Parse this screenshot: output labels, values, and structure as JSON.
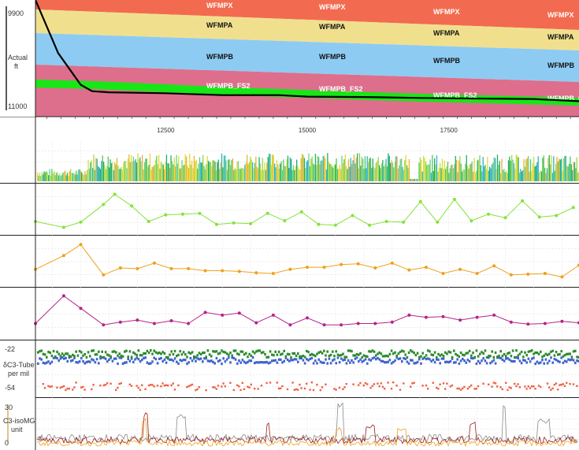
{
  "colors": {
    "WFMPX": "#f26b50",
    "WFMPA": "#f0e08e",
    "WFMPB": "#8ecbf3",
    "WFMPB_FS2": "#dd6f8c",
    "band": "#17e617",
    "trajectory": "#000000",
    "green_series": "#86e23a",
    "orange_series": "#f0a01c",
    "magenta_series": "#b5248a",
    "tube_upper_a": "#2e8b2e",
    "tube_upper_b": "#3f64cf",
    "tube_lower": "#f06146",
    "c3_red": "#9b1c1c",
    "c3_orange": "#f0a01c",
    "c3_grey": "#8a8a8a"
  },
  "axis": {
    "x_ticks": [
      "12500",
      "15000",
      "17500"
    ],
    "depth_top": "9900",
    "depth_bottom": "11000",
    "depth_label_1": "Actual",
    "depth_label_2": "ft"
  },
  "formation_labels": {
    "wfmpx": "WFMPX",
    "wfmpa": "WFMPA",
    "wfmpb": "WFMPB",
    "wfmpb_fs2": "WFMPB_FS2"
  },
  "tube_panel": {
    "top_value": "-22",
    "bottom_value": "-54",
    "label_1": "δC3-Tube",
    "label_2": "per mil"
  },
  "c3_panel": {
    "top_value": "30",
    "bottom_value": "0",
    "label_1": "C3-isoMG",
    "label_2": "unit"
  },
  "chart_data": [
    {
      "type": "area",
      "ylabel": "Actual ft",
      "xlim": [
        10200,
        19800
      ],
      "ylim": [
        9900,
        11000
      ],
      "x_ticks": [
        12500,
        15000,
        17500
      ],
      "formations": [
        "WFMPX",
        "WFMPA",
        "WFMPB",
        "WFMPB_FS2"
      ],
      "formation_tops_x": [
        10200,
        19800
      ],
      "trajectory": {
        "x": [
          10200,
          10600,
          11000,
          11200,
          11500,
          12500,
          13500,
          14500,
          15000,
          16000,
          17000,
          18000,
          19000,
          19800
        ],
        "y": [
          9900,
          10400,
          10700,
          10760,
          10770,
          10790,
          10800,
          10790,
          10800,
          10810,
          10830,
          10840,
          10840,
          10850
        ]
      }
    },
    {
      "type": "bar",
      "description": "dense colored log track"
    },
    {
      "type": "line",
      "series": [
        {
          "x": [
            10200,
            10700,
            11000,
            11400,
            11600,
            11900,
            12200,
            12500,
            12800,
            13100,
            13400,
            13700,
            14000,
            14300,
            14600,
            14900,
            15200,
            15500,
            15800,
            16100,
            16400,
            16700,
            17000,
            17300,
            17600,
            17900,
            18200,
            18500,
            18800,
            19100,
            19400,
            19700
          ],
          "y": [
            1.5,
            0.7,
            1.4,
            3.8,
            5.2,
            3.6,
            1.5,
            2.4,
            2.5,
            2.6,
            1.1,
            1.3,
            1.2,
            2.6,
            1.6,
            2.8,
            1.1,
            1.0,
            2.3,
            1.0,
            1.5,
            1.4,
            4.2,
            1.4,
            4.5,
            1.6,
            2.5,
            2.0,
            4.3,
            2.1,
            2.3,
            3.4
          ]
        }
      ]
    },
    {
      "type": "line",
      "series": [
        {
          "x": [
            10200,
            10700,
            11000,
            11400,
            11700,
            12000,
            12300,
            12600,
            12900,
            13200,
            13500,
            13800,
            14100,
            14400,
            14700,
            15000,
            15300,
            15600,
            15900,
            16200,
            16500,
            16800,
            17100,
            17400,
            17700,
            18000,
            18300,
            18600,
            18900,
            19200,
            19500,
            19800
          ],
          "y": [
            2.2,
            4.2,
            5.8,
            1.4,
            2.4,
            2.3,
            3.1,
            2.3,
            2.3,
            2.0,
            2.0,
            1.9,
            1.7,
            1.6,
            2.2,
            2.5,
            2.5,
            2.9,
            3.0,
            2.4,
            3.1,
            2.1,
            2.5,
            1.6,
            2.2,
            1.6,
            2.7,
            1.4,
            1.5,
            1.6,
            1.1,
            2.8
          ]
        }
      ]
    },
    {
      "type": "line",
      "series": [
        {
          "x": [
            10200,
            10700,
            11000,
            11400,
            11700,
            12000,
            12300,
            12600,
            12900,
            13200,
            13500,
            13800,
            14100,
            14400,
            14700,
            15000,
            15300,
            15600,
            15900,
            16200,
            16500,
            16800,
            17100,
            17400,
            17700,
            18000,
            18300,
            18600,
            18900,
            19200,
            19500,
            19800
          ],
          "y": [
            2.0,
            6.0,
            4.2,
            1.8,
            2.2,
            2.5,
            2.0,
            2.4,
            2.0,
            3.6,
            3.2,
            3.5,
            2.1,
            3.2,
            1.8,
            2.8,
            1.8,
            1.8,
            2.0,
            2.0,
            2.2,
            3.2,
            2.9,
            3.0,
            2.5,
            2.9,
            3.2,
            2.2,
            1.9,
            2.0,
            2.3,
            2.1
          ]
        }
      ]
    },
    {
      "type": "scatter",
      "ylabel": "δC3-Tube per mil",
      "ylim": [
        -54,
        -22
      ],
      "y_ticks": [
        -22,
        -54
      ]
    },
    {
      "type": "line",
      "ylabel": "C3-isoMG unit",
      "ylim": [
        0,
        30
      ],
      "y_ticks": [
        0,
        30
      ]
    }
  ]
}
